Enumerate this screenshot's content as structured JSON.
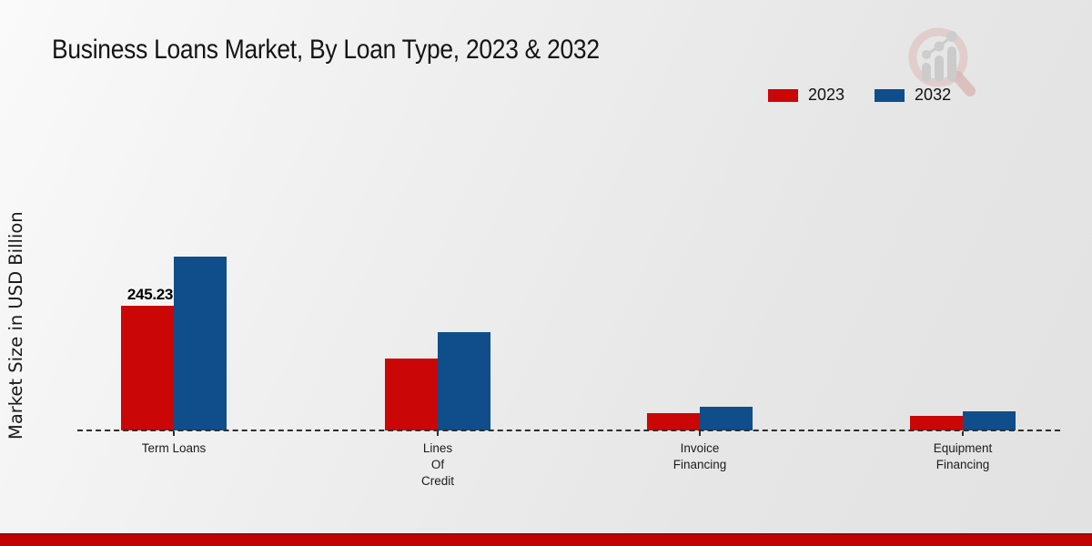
{
  "title": "Business Loans Market, By Loan Type, 2023 & 2032",
  "y_axis_label": "Market Size in USD Billion",
  "legend": {
    "position": "top-right",
    "items": [
      {
        "label": "2023",
        "color": "#cb0606"
      },
      {
        "label": "2032",
        "color": "#0f4e8a"
      }
    ]
  },
  "logo": {
    "name": "market-research-magnifier-logo"
  },
  "footer": {
    "color": "#c20202"
  },
  "colors": {
    "bar_2023": "#cb0606",
    "bar_2032": "#0f4e8a",
    "baseline": "#2e2e2e",
    "background_light": "#fafafa",
    "background_dark": "#e2e2e2",
    "footer_red": "#c20202"
  },
  "chart_data": {
    "type": "bar",
    "title": "Business Loans Market, By Loan Type, 2023 & 2032",
    "xlabel": "",
    "ylabel": "Market Size in USD Billion",
    "categories": [
      "Term Loans",
      "Lines Of Credit",
      "Invoice Financing",
      "Equipment Financing"
    ],
    "category_label_lines": [
      [
        "Term Loans"
      ],
      [
        "Lines",
        "Of",
        "Credit"
      ],
      [
        "Invoice",
        "Financing"
      ],
      [
        "Equipment",
        "Financing"
      ]
    ],
    "series": [
      {
        "name": "2023",
        "color": "#cb0606",
        "values": [
          245.23,
          141,
          34,
          29
        ]
      },
      {
        "name": "2032",
        "color": "#0f4e8a",
        "values": [
          342,
          193,
          47,
          38
        ]
      }
    ],
    "bar_labels": [
      {
        "series": "2023",
        "category": "Term Loans",
        "category_index": 0,
        "text": "245.23"
      }
    ],
    "ylim": [
      0,
      420
    ],
    "gridlines": false,
    "baseline_style": "dashed",
    "legend_position": "top-right"
  }
}
